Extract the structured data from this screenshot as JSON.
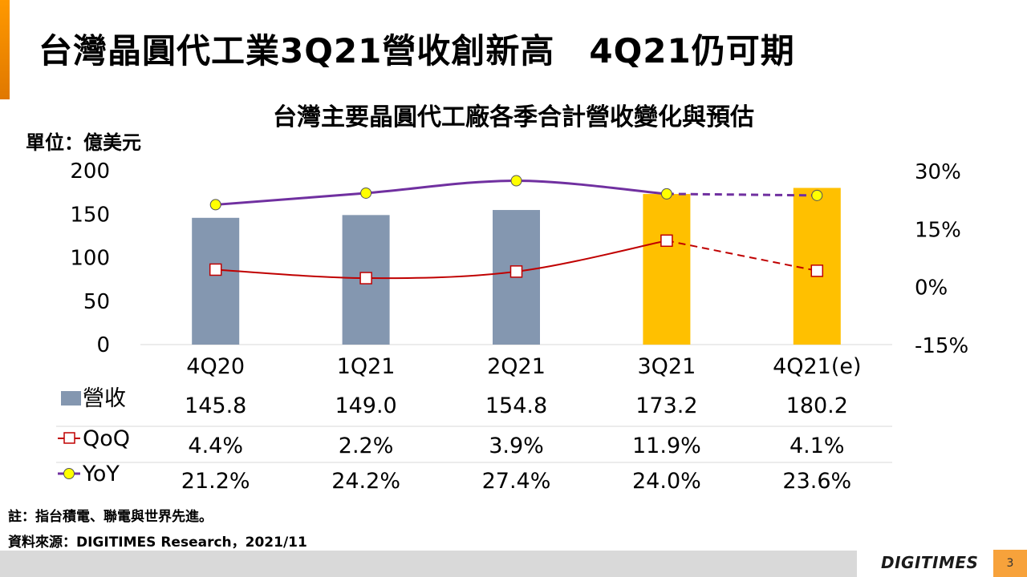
{
  "slide": {
    "title": "台灣晶圓代工業3Q21營收創新高　4Q21仍可期",
    "unit": "單位：億美元",
    "note": "註：指台積電、聯電與世界先進。",
    "source": "資料來源：DIGITIMES Research，2021/11",
    "brand": "DIGITIMES",
    "page_number": "3"
  },
  "chart_data": {
    "type": "bar",
    "title": "台灣主要晶圓代工廠各季合計營收變化與預估",
    "categories": [
      "4Q20",
      "1Q21",
      "2Q21",
      "3Q21",
      "4Q21(e)"
    ],
    "left_axis": {
      "min": 0,
      "max": 200,
      "ticks": [
        "0",
        "50",
        "100",
        "150",
        "200"
      ]
    },
    "right_axis": {
      "min": -15,
      "max": 30,
      "ticks": [
        "-15%",
        "0%",
        "15%",
        "30%"
      ]
    },
    "series": [
      {
        "name": "營收",
        "kind": "bar",
        "axis": "left",
        "values": [
          145.8,
          149.0,
          154.8,
          173.2,
          180.2
        ],
        "labels": [
          "145.8",
          "149.0",
          "154.8",
          "173.2",
          "180.2"
        ],
        "colors": [
          "#8497b0",
          "#8497b0",
          "#8497b0",
          "#ffc000",
          "#ffc000"
        ]
      },
      {
        "name": "QoQ",
        "kind": "line",
        "axis": "right",
        "marker": "square",
        "color": "#c00000",
        "values": [
          4.4,
          2.2,
          3.9,
          11.9,
          4.1
        ],
        "labels": [
          "4.4%",
          "2.2%",
          "3.9%",
          "11.9%",
          "4.1%"
        ]
      },
      {
        "name": "YoY",
        "kind": "line",
        "axis": "right",
        "marker": "circle",
        "color": "#7030a0",
        "values": [
          21.2,
          24.2,
          27.4,
          24.0,
          23.6
        ],
        "labels": [
          "21.2%",
          "24.2%",
          "27.4%",
          "24.0%",
          "23.6%"
        ]
      }
    ],
    "forecast_from_index": 3,
    "colors": {
      "bar": "#8497b0",
      "highlight": "#ffc000",
      "qoq": "#c00000",
      "yoy": "#7030a0",
      "yoy_marker": "#ffff00"
    }
  }
}
